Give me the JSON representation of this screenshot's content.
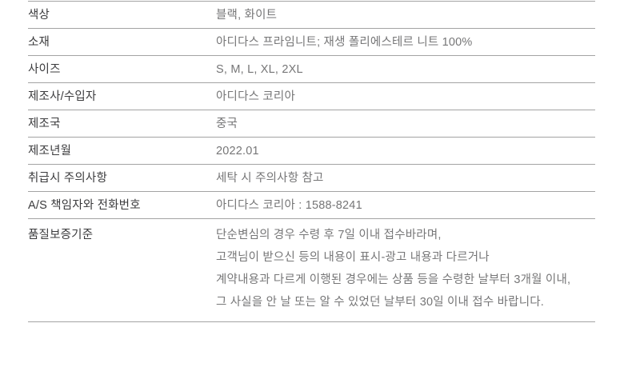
{
  "table": {
    "name": "product-information-table",
    "colors": {
      "background": "#ffffff",
      "label_text": "#3b3b3d",
      "value_text": "#767677",
      "divider": "#a3a3a3"
    },
    "rows": [
      {
        "label": "색상",
        "value": "블랙, 화이트"
      },
      {
        "label": "소재",
        "value": "아디다스 프라임니트; 재생 폴리에스테르 니트 100%"
      },
      {
        "label": "사이즈",
        "value": "S, M, L, XL, 2XL"
      },
      {
        "label": "제조사/수입자",
        "value": "아디다스 코리아"
      },
      {
        "label": "제조국",
        "value": "중국"
      },
      {
        "label": "제조년월",
        "value": "2022.01"
      },
      {
        "label": "취급시 주의사항",
        "value": "세탁 시 주의사항 참고"
      },
      {
        "label": "A/S 책임자와 전화번호",
        "value": "아디다스 코리아 : 1588-8241"
      },
      {
        "label": "품질보증기준",
        "value_lines": [
          "단순변심의 경우 수령 후 7일 이내 접수바라며,",
          "고객님이 받으신 등의 내용이 표시-광고 내용과 다르거나",
          "계약내용과 다르게 이행된 경우에는 상품 등을 수령한 날부터 3개월 이내,",
          "그 사실을 안 날 또는 알 수 있었던 날부터 30일 이내 접수 바랍니다."
        ]
      }
    ]
  }
}
